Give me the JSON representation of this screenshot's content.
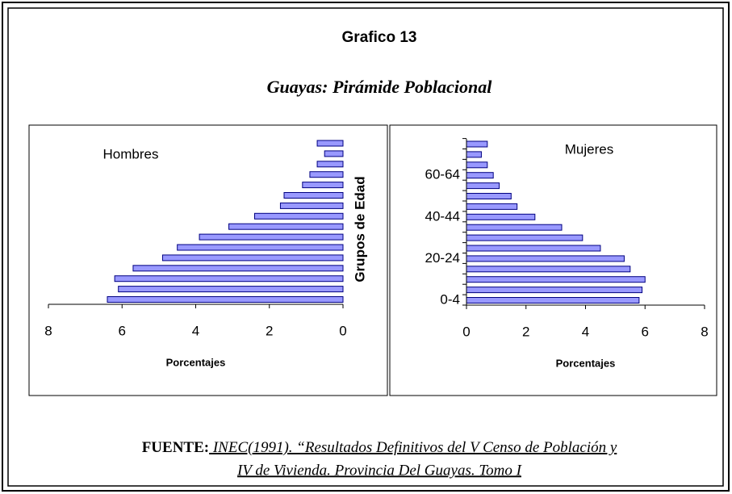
{
  "title": "Grafico 13",
  "subtitle": "Guayas: Pirámide Poblacional",
  "ylabel": "Grupos de Edad",
  "source": {
    "label": "FUENTE:",
    "lines": [
      " INEC(1991).  “Resultados Definitivos del V Censo de Población y",
      "IV de Vivienda. Provincia Del Guayas. Tomo I"
    ]
  },
  "chart_data": [
    {
      "type": "bar",
      "orientation": "horizontal",
      "xlabel": "Porcentajes",
      "categories": [
        null,
        null,
        null,
        null,
        null,
        null,
        null,
        null,
        null,
        null,
        null,
        null,
        null,
        null,
        null,
        null
      ],
      "series": [
        {
          "name": "Hombres",
          "color": "#9999ff",
          "edge_color": "#000080",
          "values": [
            6.4,
            6.1,
            6.2,
            5.7,
            4.9,
            4.5,
            3.9,
            3.1,
            2.4,
            1.7,
            1.6,
            1.1,
            0.9,
            0.7,
            0.5,
            0.7
          ]
        }
      ],
      "xlim": [
        8,
        0
      ],
      "xticks": [
        8,
        6,
        4,
        2,
        0
      ]
    },
    {
      "type": "bar",
      "orientation": "horizontal",
      "xlabel": "Porcentajes",
      "categories": [
        "0-4",
        null,
        null,
        null,
        "20-24",
        null,
        null,
        null,
        "40-44",
        null,
        null,
        null,
        "60-64",
        null,
        null,
        null
      ],
      "series": [
        {
          "name": "Mujeres",
          "color": "#9999ff",
          "edge_color": "#000080",
          "values": [
            5.8,
            5.9,
            6.0,
            5.5,
            5.3,
            4.5,
            3.9,
            3.2,
            2.3,
            1.7,
            1.5,
            1.1,
            0.9,
            0.7,
            0.5,
            0.7
          ]
        }
      ],
      "xlim": [
        0,
        8
      ],
      "xticks": [
        0,
        2,
        4,
        6,
        8
      ]
    }
  ]
}
